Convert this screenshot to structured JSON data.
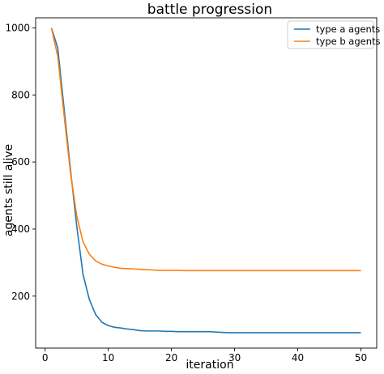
{
  "chart_data": {
    "type": "line",
    "title": "battle progression",
    "xlabel": "iteration",
    "ylabel": "agents still alive",
    "xlim": [
      -1.5,
      52.5
    ],
    "ylim": [
      45,
      1030
    ],
    "xticks": [
      0,
      10,
      20,
      30,
      40,
      50
    ],
    "yticks": [
      200,
      400,
      600,
      800,
      1000
    ],
    "grid": false,
    "legend_position": "top-right",
    "x": [
      1,
      2,
      3,
      4,
      5,
      6,
      7,
      8,
      9,
      10,
      11,
      12,
      13,
      14,
      15,
      16,
      17,
      18,
      19,
      20,
      21,
      22,
      23,
      24,
      25,
      26,
      27,
      28,
      29,
      30,
      31,
      32,
      33,
      34,
      35,
      36,
      37,
      38,
      39,
      40,
      41,
      42,
      43,
      44,
      45,
      46,
      47,
      48,
      49,
      50
    ],
    "series": [
      {
        "name": "type a agents",
        "color": "#1f77b4",
        "values": [
          1000,
          940,
          760,
          580,
          410,
          265,
          190,
          145,
          122,
          112,
          107,
          105,
          102,
          100,
          97,
          96,
          96,
          96,
          95,
          95,
          94,
          94,
          94,
          94,
          94,
          94,
          93,
          92,
          91,
          91,
          91,
          91,
          91,
          91,
          91,
          91,
          91,
          91,
          91,
          91,
          91,
          91,
          91,
          91,
          91,
          91,
          91,
          91,
          91,
          91
        ]
      },
      {
        "name": "type b agents",
        "color": "#ff7f0e",
        "values": [
          1000,
          915,
          740,
          570,
          440,
          362,
          325,
          305,
          295,
          290,
          286,
          283,
          282,
          281,
          280,
          279,
          278,
          277,
          277,
          277,
          277,
          276,
          276,
          276,
          276,
          276,
          276,
          276,
          276,
          276,
          276,
          276,
          276,
          276,
          276,
          276,
          276,
          276,
          276,
          276,
          276,
          276,
          276,
          276,
          276,
          276,
          276,
          276,
          276,
          276
        ]
      }
    ]
  }
}
